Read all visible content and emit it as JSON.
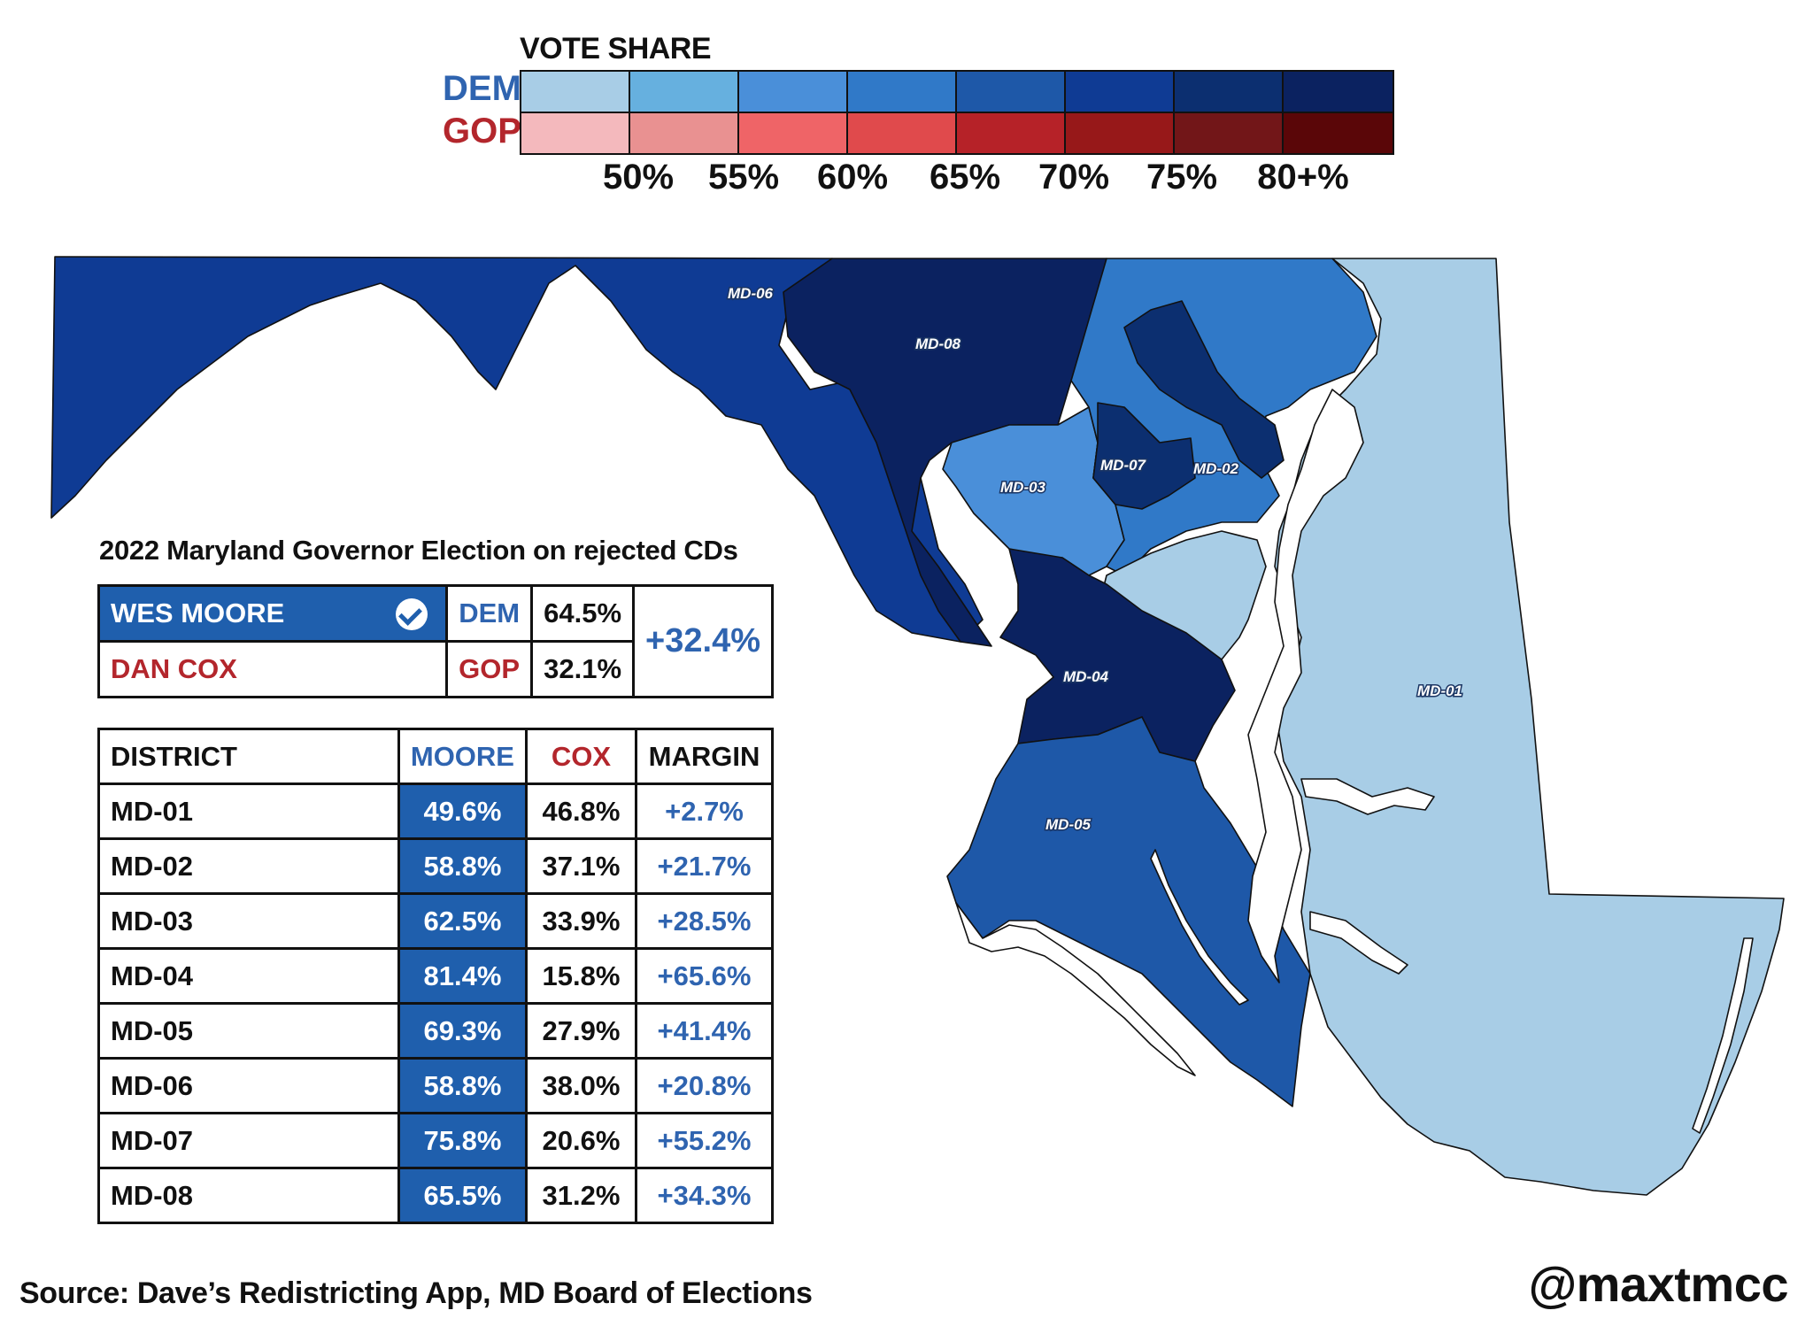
{
  "legend": {
    "title": "VOTE SHARE",
    "dem_label": "DEM",
    "gop_label": "GOP",
    "dem_colors": [
      "#a8cde6",
      "#66b0df",
      "#4a8fd9",
      "#3079c8",
      "#1e58a8",
      "#0f3b94",
      "#0c2f70",
      "#0b2260"
    ],
    "gop_colors": [
      "#f4b9bd",
      "#e99191",
      "#ef6467",
      "#e04a4c",
      "#b62228",
      "#971819",
      "#721618",
      "#5a0608"
    ],
    "ticks": [
      "50%",
      "55%",
      "60%",
      "65%",
      "70%",
      "75%",
      "80+%"
    ]
  },
  "map": {
    "districts": [
      {
        "id": "MD-01",
        "label": "MD-01",
        "color": "#a8cde6"
      },
      {
        "id": "MD-02",
        "label": "MD-02",
        "color": "#4a8fd9"
      },
      {
        "id": "MD-03",
        "label": "MD-03",
        "color": "#4a8fd9"
      },
      {
        "id": "MD-04",
        "label": "MD-04",
        "color": "#0b2260"
      },
      {
        "id": "MD-05",
        "label": "MD-05",
        "color": "#1e58a8"
      },
      {
        "id": "MD-06",
        "label": "MD-06",
        "color": "#4a8fd9"
      },
      {
        "id": "MD-07",
        "label": "MD-07",
        "color": "#0c2f70"
      },
      {
        "id": "MD-08",
        "label": "MD-08",
        "color": "#1e58a8"
      }
    ]
  },
  "summary": {
    "title": "2022 Maryland Governor Election on rejected CDs",
    "dem": {
      "name": "WES MOORE",
      "party": "DEM",
      "pct": "64.5%"
    },
    "gop": {
      "name": "DAN COX",
      "party": "GOP",
      "pct": "32.1%"
    },
    "margin": "+32.4%"
  },
  "table": {
    "headers": {
      "district": "DISTRICT",
      "moore": "MOORE",
      "cox": "COX",
      "margin": "MARGIN"
    },
    "rows": [
      {
        "district": "MD-01",
        "moore": "49.6%",
        "cox": "46.8%",
        "margin": "+2.7%"
      },
      {
        "district": "MD-02",
        "moore": "58.8%",
        "cox": "37.1%",
        "margin": "+21.7%"
      },
      {
        "district": "MD-03",
        "moore": "62.5%",
        "cox": "33.9%",
        "margin": "+28.5%"
      },
      {
        "district": "MD-04",
        "moore": "81.4%",
        "cox": "15.8%",
        "margin": "+65.6%"
      },
      {
        "district": "MD-05",
        "moore": "69.3%",
        "cox": "27.9%",
        "margin": "+41.4%"
      },
      {
        "district": "MD-06",
        "moore": "58.8%",
        "cox": "38.0%",
        "margin": "+20.8%"
      },
      {
        "district": "MD-07",
        "moore": "75.8%",
        "cox": "20.6%",
        "margin": "+55.2%"
      },
      {
        "district": "MD-08",
        "moore": "65.5%",
        "cox": "31.2%",
        "margin": "+34.3%"
      }
    ]
  },
  "footer": {
    "source": "Source: Dave’s Redistricting App, MD Board of Elections",
    "handle": "@maxtmcc"
  }
}
